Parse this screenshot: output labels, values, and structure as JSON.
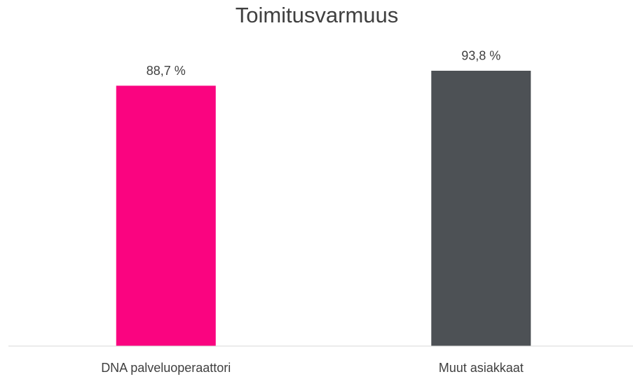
{
  "chart_data": {
    "type": "bar",
    "title": "Toimitusvarmuus",
    "categories": [
      "DNA palveluoperaattori",
      "Muut asiakkaat"
    ],
    "values": [
      88.7,
      93.8
    ],
    "value_labels": [
      "88,7 %",
      "93,8 %"
    ],
    "colors": [
      "#fa0480",
      "#4d5155"
    ],
    "ylim": [
      0,
      100
    ]
  }
}
